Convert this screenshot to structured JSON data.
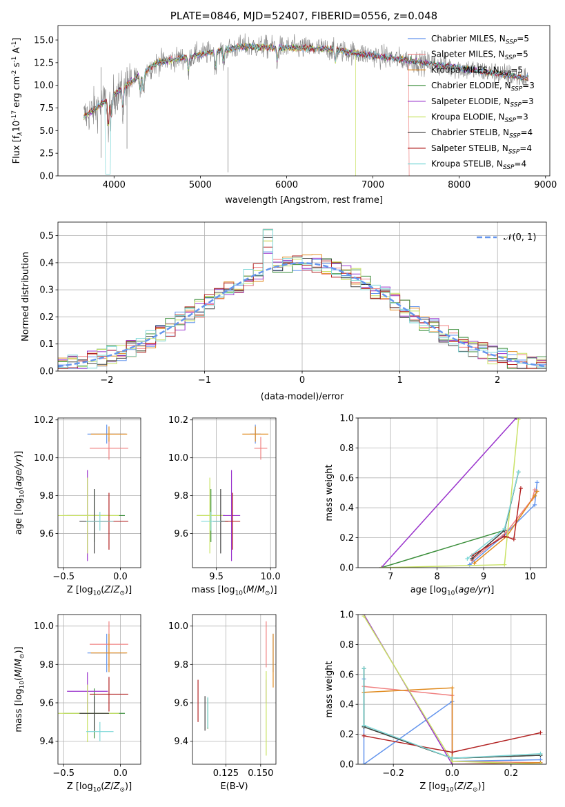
{
  "chart_data": [
    {
      "type": "line",
      "title": "PLATE=0846, MJD=52407, FIBERID=0556, z=0.048",
      "xlabel": "wavelength [Angstrom, rest frame]",
      "ylabel": "Flux [f",
      "ylabel_sub": "λ",
      "ylabel_mid": "10",
      "ylabel_sup1": "-17",
      "ylabel_tail": " erg cm",
      "ylabel_sup2": "-2",
      "ylabel_tail2": " s",
      "ylabel_sup3": "-1",
      "ylabel_tail3": " A",
      "ylabel_sup4": "-1",
      "ylabel_end": "]",
      "xlim": [
        3350,
        9050
      ],
      "ylim": [
        0,
        16.6
      ],
      "xticks": [
        "4000",
        "5000",
        "6000",
        "7000",
        "8000",
        "9000"
      ],
      "yticks": [
        "0.0",
        "2.5",
        "5.0",
        "7.5",
        "10.0",
        "12.5",
        "15.0"
      ],
      "legend": "top-right",
      "data_series": {
        "name": "data",
        "color": "#808080",
        "x_start": 3650,
        "x_end": 8800
      },
      "series": [
        {
          "label": "Chabrier MILES, N",
          "sub": "SSP",
          "suffix": "=5",
          "color": "#6495ED"
        },
        {
          "label": "Salpeter MILES, N",
          "sub": "SSP",
          "suffix": "=5",
          "color": "#F08080"
        },
        {
          "label": "Kroupa MILES, N",
          "sub": "SSP",
          "suffix": "=5",
          "color": "#E08A1E"
        },
        {
          "label": "Chabrier ELODIE, N",
          "sub": "SSP",
          "suffix": "=3",
          "color": "#3A8E3A"
        },
        {
          "label": "Salpeter ELODIE, N",
          "sub": "SSP",
          "suffix": "=3",
          "color": "#9932CC"
        },
        {
          "label": "Kroupa ELODIE, N",
          "sub": "SSP",
          "suffix": "=3",
          "color": "#C9E265"
        },
        {
          "label": "Chabrier STELIB, N",
          "sub": "SSP",
          "suffix": "=4",
          "color": "#404040"
        },
        {
          "label": "Salpeter STELIB, N",
          "sub": "SSP",
          "suffix": "=4",
          "color": "#B22222"
        },
        {
          "label": "Kroupa STELIB, N",
          "sub": "SSP",
          "suffix": "=4",
          "color": "#7FD8D8"
        }
      ],
      "drops": [
        {
          "series": 5,
          "x": 6800
        },
        {
          "series": 1,
          "x": 7420
        },
        {
          "series": 8,
          "x": 3930
        }
      ]
    },
    {
      "type": "bar",
      "title": "",
      "xlabel": "(data-model)/error",
      "ylabel": "Normed distribution",
      "xlim": [
        -2.5,
        2.5
      ],
      "ylim": [
        0,
        0.55
      ],
      "xticks": [
        "−2",
        "−1",
        "0",
        "1",
        "2"
      ],
      "xtick_values": [
        -2,
        -1,
        0,
        1,
        2
      ],
      "yticks": [
        "0.0",
        "0.1",
        "0.2",
        "0.3",
        "0.4",
        "0.5"
      ],
      "ytick_values": [
        0,
        0.1,
        0.2,
        0.3,
        0.4,
        0.5
      ],
      "legend": "top-right",
      "legend_label": "𝒩(0, 1)",
      "gaussian_color": "#6495ED",
      "bin_width": 0.1,
      "bin_start": -2.5,
      "histogram_colors": [
        "#6495ED",
        "#F08080",
        "#E08A1E",
        "#3A8E3A",
        "#9932CC",
        "#C9E265",
        "#404040",
        "#B22222",
        "#7FD8D8"
      ]
    },
    {
      "type": "scatter",
      "title": "",
      "xlabel": "Z [log",
      "xlabel_sub": "10",
      "xlabel_tail": "(Z/Z",
      "xlabel_sub2": "⊙",
      "xlabel_end": ")]",
      "ylabel": "age  [log",
      "ylabel_sub": "10",
      "ylabel_tail": "(age/yr)]",
      "xlim": [
        -0.55,
        0.18
      ],
      "ylim": [
        9.42,
        10.21
      ],
      "xticks": [
        "−0.5",
        "0.0"
      ],
      "xtick_values": [
        -0.5,
        0.0
      ],
      "yticks": [
        "9.6",
        "9.8",
        "10.0",
        "10.2"
      ],
      "ytick_values": [
        9.6,
        9.8,
        10.0,
        10.2
      ],
      "points": [
        {
          "x": -0.12,
          "y": 10.125,
          "xerr": 0.17,
          "yerr": 0.05,
          "color": "#6495ED"
        },
        {
          "x": -0.1,
          "y": 10.05,
          "xerr": 0.17,
          "yerr": 0.06,
          "color": "#F08080"
        },
        {
          "x": -0.1,
          "y": 10.125,
          "xerr": 0.16,
          "yerr": 0.04,
          "color": "#E08A1E"
        },
        {
          "x": -0.23,
          "y": 9.695,
          "xerr": 0.27,
          "yerr": 0.14,
          "color": "#3A8E3A"
        },
        {
          "x": -0.29,
          "y": 9.695,
          "xerr": 0.18,
          "yerr": 0.24,
          "color": "#9932CC"
        },
        {
          "x": -0.29,
          "y": 9.695,
          "xerr": 0.28,
          "yerr": 0.2,
          "color": "#C9E265"
        },
        {
          "x": -0.23,
          "y": 9.665,
          "xerr": 0.13,
          "yerr": 0.17,
          "color": "#404040"
        },
        {
          "x": -0.1,
          "y": 9.665,
          "xerr": 0.17,
          "yerr": 0.15,
          "color": "#B22222"
        },
        {
          "x": -0.18,
          "y": 9.665,
          "xerr": 0.12,
          "yerr": 0.05,
          "color": "#7FD8D8"
        }
      ]
    },
    {
      "type": "scatter",
      "title": "",
      "xlabel": "mass [log",
      "xlabel_sub": "10",
      "xlabel_tail": "(M/M",
      "xlabel_sub2": "⊙",
      "xlabel_end": ")]",
      "xlim": [
        9.28,
        10.05
      ],
      "ylim": [
        9.42,
        10.21
      ],
      "xticks": [
        "9.5",
        "10.0"
      ],
      "xtick_values": [
        9.5,
        10.0
      ],
      "yticks": [
        "9.6",
        "9.8",
        "10.0",
        "10.2"
      ],
      "ytick_values": [
        9.6,
        9.8,
        10.0,
        10.2
      ],
      "points": [
        {
          "x": 9.86,
          "y": 10.125,
          "xerr": 0.05,
          "yerr": 0.05,
          "color": "#6495ED"
        },
        {
          "x": 9.91,
          "y": 10.05,
          "xerr": 0.06,
          "yerr": 0.06,
          "color": "#F08080"
        },
        {
          "x": 9.86,
          "y": 10.125,
          "xerr": 0.12,
          "yerr": 0.04,
          "color": "#E08A1E"
        },
        {
          "x": 9.45,
          "y": 9.695,
          "xerr": 0.13,
          "yerr": 0.14,
          "color": "#3A8E3A"
        },
        {
          "x": 9.64,
          "y": 9.695,
          "xerr": 0.08,
          "yerr": 0.24,
          "color": "#9932CC"
        },
        {
          "x": 9.44,
          "y": 9.695,
          "xerr": 0.12,
          "yerr": 0.2,
          "color": "#C9E265"
        },
        {
          "x": 9.54,
          "y": 9.665,
          "xerr": 0.07,
          "yerr": 0.17,
          "color": "#404040"
        },
        {
          "x": 9.65,
          "y": 9.665,
          "xerr": 0.07,
          "yerr": 0.15,
          "color": "#B22222"
        },
        {
          "x": 9.45,
          "y": 9.665,
          "xerr": 0.09,
          "yerr": 0.05,
          "color": "#7FD8D8"
        }
      ]
    },
    {
      "type": "line",
      "title": "",
      "xlabel": "age  [log",
      "xlabel_sub": "10",
      "xlabel_tail": "(age/yr)]",
      "ylabel": "mass weight",
      "xlim": [
        6.3,
        10.35
      ],
      "ylim": [
        0,
        1.0
      ],
      "xticks": [
        "7",
        "8",
        "9",
        "10"
      ],
      "xtick_values": [
        7,
        8,
        9,
        10
      ],
      "yticks": [
        "0.0",
        "0.2",
        "0.4",
        "0.6",
        "0.8",
        "1.0"
      ],
      "ytick_values": [
        0,
        0.2,
        0.4,
        0.6,
        0.8,
        1.0
      ],
      "series": [
        {
          "color": "#6495ED",
          "x": [
            8.7,
            9.45,
            10.1,
            10.15
          ],
          "y": [
            0.02,
            0.22,
            0.42,
            0.57
          ]
        },
        {
          "color": "#F08080",
          "x": [
            8.75,
            9.5,
            10.05,
            10.1
          ],
          "y": [
            0.05,
            0.24,
            0.46,
            0.52
          ]
        },
        {
          "color": "#E08A1E",
          "x": [
            8.8,
            9.5,
            10.1,
            10.15
          ],
          "y": [
            0.03,
            0.21,
            0.48,
            0.51
          ]
        },
        {
          "color": "#3A8E3A",
          "x": [
            6.8,
            9.45,
            9.75
          ],
          "y": [
            0.0,
            0.25,
            0.64
          ]
        },
        {
          "color": "#9932CC",
          "x": [
            6.8,
            9.7
          ],
          "y": [
            0.0,
            1.0
          ]
        },
        {
          "color": "#C9E265",
          "x": [
            6.8,
            9.45,
            9.75
          ],
          "y": [
            0.0,
            0.02,
            0.99
          ]
        },
        {
          "color": "#404040",
          "x": [
            8.75,
            9.45,
            9.75
          ],
          "y": [
            0.06,
            0.25,
            0.64
          ]
        },
        {
          "color": "#B22222",
          "x": [
            8.75,
            9.45,
            9.65,
            9.8
          ],
          "y": [
            0.08,
            0.21,
            0.19,
            0.53
          ]
        },
        {
          "color": "#7FD8D8",
          "x": [
            8.65,
            9.45,
            9.75
          ],
          "y": [
            0.06,
            0.26,
            0.64
          ]
        }
      ]
    },
    {
      "type": "scatter",
      "title": "",
      "xlabel": "Z [log",
      "xlabel_sub": "10",
      "xlabel_tail": "(Z/Z",
      "xlabel_sub2": "⊙",
      "xlabel_end": ")]",
      "ylabel": "mass [log",
      "ylabel_sub": "10",
      "ylabel_tail": "(M/M",
      "ylabel_sub2": "⊙",
      "ylabel_end": ")]",
      "xlim": [
        -0.55,
        0.18
      ],
      "ylim": [
        9.28,
        10.06
      ],
      "xticks": [
        "−0.5",
        "0.0"
      ],
      "xtick_values": [
        -0.5,
        0.0
      ],
      "yticks": [
        "9.4",
        "9.6",
        "9.8",
        "10.0"
      ],
      "ytick_values": [
        9.4,
        9.6,
        9.8,
        10.0
      ],
      "points": [
        {
          "x": -0.12,
          "y": 9.86,
          "xerr": 0.17,
          "yerr": 0.1,
          "color": "#6495ED"
        },
        {
          "x": -0.1,
          "y": 9.905,
          "xerr": 0.17,
          "yerr": 0.12,
          "color": "#F08080"
        },
        {
          "x": -0.1,
          "y": 9.86,
          "xerr": 0.16,
          "yerr": 0.1,
          "color": "#E08A1E"
        },
        {
          "x": -0.23,
          "y": 9.545,
          "xerr": 0.27,
          "yerr": 0.13,
          "color": "#3A8E3A"
        },
        {
          "x": -0.29,
          "y": 9.66,
          "xerr": 0.18,
          "yerr": 0.1,
          "color": "#9932CC"
        },
        {
          "x": -0.29,
          "y": 9.545,
          "xerr": 0.28,
          "yerr": 0.15,
          "color": "#C9E265"
        },
        {
          "x": -0.23,
          "y": 9.545,
          "xerr": 0.13,
          "yerr": 0.09,
          "color": "#404040"
        },
        {
          "x": -0.1,
          "y": 9.645,
          "xerr": 0.17,
          "yerr": 0.09,
          "color": "#B22222"
        },
        {
          "x": -0.18,
          "y": 9.45,
          "xerr": 0.12,
          "yerr": 0.05,
          "color": "#7FD8D8"
        }
      ]
    },
    {
      "type": "scatter",
      "title": "",
      "xlabel": "E(B-V)",
      "xlim": [
        0.101,
        0.161
      ],
      "ylim": [
        9.28,
        10.06
      ],
      "xticks": [
        "0.125",
        "0.150"
      ],
      "xtick_values": [
        0.125,
        0.15
      ],
      "yticks": [
        "9.4",
        "9.6",
        "9.8",
        "10.0"
      ],
      "ytick_values": [
        9.4,
        9.6,
        9.8,
        10.0
      ],
      "points": [
        {
          "x": 0.159,
          "y": 9.86,
          "yerr": 0.1,
          "color": "#6495ED"
        },
        {
          "x": 0.154,
          "y": 9.905,
          "yerr": 0.12,
          "color": "#F08080"
        },
        {
          "x": 0.159,
          "y": 9.82,
          "yerr": 0.14,
          "color": "#E08A1E"
        },
        {
          "x": 0.112,
          "y": 9.545,
          "yerr": 0.08,
          "color": "#3A8E3A"
        },
        {
          "x": 0.154,
          "y": 9.66,
          "yerr": 0.06,
          "color": "#9932CC"
        },
        {
          "x": 0.154,
          "y": 9.545,
          "yerr": 0.22,
          "color": "#C9E265"
        },
        {
          "x": 0.11,
          "y": 9.545,
          "yerr": 0.09,
          "color": "#404040"
        },
        {
          "x": 0.105,
          "y": 9.61,
          "yerr": 0.11,
          "color": "#B22222"
        },
        {
          "x": 0.112,
          "y": 9.55,
          "yerr": 0.08,
          "color": "#7FD8D8"
        }
      ]
    },
    {
      "type": "line",
      "title": "",
      "xlabel": "Z [log",
      "xlabel_sub": "10",
      "xlabel_tail": "(Z/Z",
      "xlabel_sub2": "⊙",
      "xlabel_end": ")]",
      "ylabel": "mass weight",
      "xlim": [
        -0.32,
        0.32
      ],
      "ylim": [
        0,
        1.0
      ],
      "xticks": [
        "−0.2",
        "0.0",
        "0.2"
      ],
      "xtick_values": [
        -0.2,
        0.0,
        0.2
      ],
      "yticks": [
        "0.0",
        "0.2",
        "0.4",
        "0.6",
        "0.8",
        "1.0"
      ],
      "ytick_values": [
        0,
        0.2,
        0.4,
        0.6,
        0.8,
        1.0
      ],
      "series": [
        {
          "color": "#6495ED",
          "x": [
            -0.3,
            -0.3,
            0.0,
            0.0,
            0.3
          ],
          "y": [
            0.57,
            0.0,
            0.42,
            0.02,
            0.03
          ]
        },
        {
          "color": "#F08080",
          "x": [
            -0.3,
            0.0,
            0.0,
            0.3
          ],
          "y": [
            0.52,
            0.46,
            0.02,
            0.01
          ]
        },
        {
          "color": "#E08A1E",
          "x": [
            -0.3,
            0.0,
            0.0,
            0.3
          ],
          "y": [
            0.48,
            0.51,
            0.0,
            0.01
          ]
        },
        {
          "color": "#3A8E3A",
          "x": [
            -0.3,
            -0.3,
            0.0,
            0.3
          ],
          "y": [
            0.64,
            0.25,
            0.04,
            0.06
          ]
        },
        {
          "color": "#9932CC",
          "x": [
            -0.3,
            0.0,
            0.3
          ],
          "y": [
            1.0,
            0.0,
            0.0
          ]
        },
        {
          "color": "#C9E265",
          "x": [
            -0.3,
            0.0,
            0.3
          ],
          "y": [
            0.99,
            0.02,
            0.0
          ]
        },
        {
          "color": "#404040",
          "x": [
            -0.3,
            -0.3,
            0.0,
            0.3
          ],
          "y": [
            0.64,
            0.25,
            0.04,
            0.06
          ]
        },
        {
          "color": "#B22222",
          "x": [
            -0.3,
            0.0,
            0.3
          ],
          "y": [
            0.19,
            0.08,
            0.21
          ]
        },
        {
          "color": "#7FD8D8",
          "x": [
            -0.3,
            -0.3,
            0.0,
            0.3
          ],
          "y": [
            0.64,
            0.26,
            0.04,
            0.07
          ]
        }
      ]
    }
  ]
}
